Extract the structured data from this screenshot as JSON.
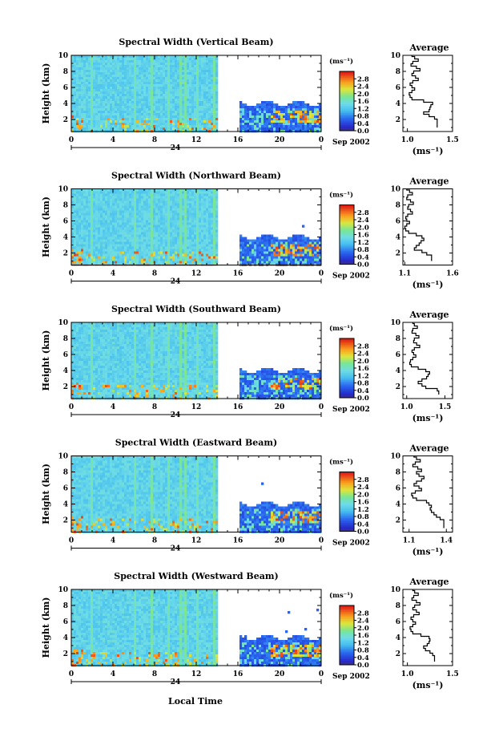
{
  "figure": {
    "xlabel": "Local Time",
    "date_label": "Sep 2002",
    "day_label": "24",
    "ylabel": "Height (km)",
    "colorbar_unit": "(ms⁻¹)",
    "avg_title": "Average",
    "avg_unit": "(ms⁻¹)"
  },
  "colors": {
    "low": "#3a3a7a",
    "mid": "#6dd6f0",
    "high": "#e0201a"
  },
  "chart_data": [
    {
      "type": "heatmap",
      "title": "Spectral Width (Vertical Beam)",
      "x_ticks": [
        "0",
        "4",
        "8",
        "12",
        "16",
        "20",
        "0"
      ],
      "x_range": [
        0,
        24
      ],
      "y_ticks": [
        "2",
        "4",
        "6",
        "8",
        "10"
      ],
      "ylim": [
        0.5,
        10
      ],
      "gap_hours": [
        14,
        16
      ],
      "colorbar": {
        "ticks": [
          "0.0",
          "0.4",
          "0.8",
          "1.2",
          "1.6",
          "2.0",
          "2.4",
          "2.8"
        ],
        "range": [
          0,
          3.2
        ]
      },
      "average": {
        "xlim": [
          0.95,
          1.5
        ],
        "x_ticks": [
          "1.0",
          "1.5"
        ],
        "x": [
          1.05,
          1.08,
          1.12,
          1.06,
          1.04,
          1.1,
          1.14,
          1.07,
          1.05,
          1.09,
          1.12,
          1.06,
          1.03,
          1.05,
          1.08,
          1.05,
          1.02,
          1.03,
          1.05,
          1.18,
          1.28,
          1.26,
          1.25,
          1.24,
          1.18,
          1.24,
          1.3,
          1.33,
          1.33,
          1.33,
          1.33
        ],
        "y": [
          10,
          9.7,
          9.4,
          9.1,
          8.8,
          8.5,
          8.2,
          7.9,
          7.6,
          7.3,
          7.0,
          6.7,
          6.4,
          6.1,
          5.8,
          5.5,
          5.2,
          4.9,
          4.6,
          4.3,
          4.0,
          3.7,
          3.4,
          3.1,
          2.8,
          2.5,
          2.2,
          1.9,
          1.6,
          1.3,
          1.0
        ]
      }
    },
    {
      "type": "heatmap",
      "title": "Spectral Width (Northward Beam)",
      "x_ticks": [
        "0",
        "4",
        "8",
        "12",
        "16",
        "20",
        "0"
      ],
      "x_range": [
        0,
        24
      ],
      "y_ticks": [
        "2",
        "4",
        "6",
        "8",
        "10"
      ],
      "ylim": [
        0.5,
        10
      ],
      "gap_hours": [
        14,
        16
      ],
      "colorbar": {
        "ticks": [
          "0.0",
          "0.4",
          "0.8",
          "1.2",
          "1.6",
          "2.0",
          "2.4",
          "2.8"
        ],
        "range": [
          0,
          3.2
        ]
      },
      "average": {
        "xlim": [
          1.08,
          1.6
        ],
        "x_ticks": [
          "1.1",
          "1.6"
        ],
        "x": [
          1.12,
          1.15,
          1.18,
          1.13,
          1.12,
          1.16,
          1.19,
          1.14,
          1.13,
          1.16,
          1.18,
          1.13,
          1.11,
          1.12,
          1.15,
          1.12,
          1.1,
          1.11,
          1.14,
          1.22,
          1.28,
          1.3,
          1.27,
          1.25,
          1.22,
          1.2,
          1.28,
          1.33,
          1.38,
          1.38,
          1.38
        ],
        "y": [
          10,
          9.7,
          9.4,
          9.1,
          8.8,
          8.5,
          8.2,
          7.9,
          7.6,
          7.3,
          7.0,
          6.7,
          6.4,
          6.1,
          5.8,
          5.5,
          5.2,
          4.9,
          4.6,
          4.3,
          4.0,
          3.7,
          3.4,
          3.1,
          2.8,
          2.5,
          2.2,
          1.9,
          1.6,
          1.3,
          1.0
        ]
      }
    },
    {
      "type": "heatmap",
      "title": "Spectral Width (Southward Beam)",
      "x_ticks": [
        "0",
        "4",
        "8",
        "12",
        "16",
        "20",
        "0"
      ],
      "x_range": [
        0,
        24
      ],
      "y_ticks": [
        "2",
        "4",
        "6",
        "8",
        "10"
      ],
      "ylim": [
        0.5,
        10
      ],
      "gap_hours": [
        14,
        16
      ],
      "colorbar": {
        "ticks": [
          "0.0",
          "0.4",
          "0.8",
          "1.2",
          "1.6",
          "2.0",
          "2.4",
          "2.8"
        ],
        "range": [
          0,
          3.2
        ]
      },
      "average": {
        "xlim": [
          0.95,
          1.6
        ],
        "x_ticks": [
          "1.0",
          "1.5"
        ],
        "x": [
          1.08,
          1.1,
          1.14,
          1.08,
          1.07,
          1.12,
          1.16,
          1.1,
          1.09,
          1.13,
          1.17,
          1.1,
          1.07,
          1.09,
          1.12,
          1.08,
          1.05,
          1.04,
          1.06,
          1.15,
          1.25,
          1.3,
          1.28,
          1.26,
          1.2,
          1.15,
          1.2,
          1.25,
          1.4,
          1.42,
          1.42
        ],
        "y": [
          10,
          9.7,
          9.4,
          9.1,
          8.8,
          8.5,
          8.2,
          7.9,
          7.6,
          7.3,
          7.0,
          6.7,
          6.4,
          6.1,
          5.8,
          5.5,
          5.2,
          4.9,
          4.6,
          4.3,
          4.0,
          3.7,
          3.4,
          3.1,
          2.8,
          2.5,
          2.2,
          1.9,
          1.6,
          1.3,
          1.0
        ]
      }
    },
    {
      "type": "heatmap",
      "title": "Spectral Width (Eastward Beam)",
      "x_ticks": [
        "0",
        "4",
        "8",
        "12",
        "16",
        "20",
        "0"
      ],
      "x_range": [
        0,
        24
      ],
      "y_ticks": [
        "2",
        "4",
        "6",
        "8",
        "10"
      ],
      "ylim": [
        0.5,
        10
      ],
      "gap_hours": [
        14,
        16
      ],
      "colorbar": {
        "ticks": [
          "0.0",
          "0.4",
          "0.8",
          "1.2",
          "1.6",
          "2.0",
          "2.4",
          "2.8"
        ],
        "range": [
          0,
          3.2
        ]
      },
      "average": {
        "xlim": [
          1.05,
          1.45
        ],
        "x_ticks": [
          "1.1",
          "1.4"
        ],
        "x": [
          1.14,
          1.16,
          1.19,
          1.15,
          1.13,
          1.17,
          1.2,
          1.16,
          1.18,
          1.22,
          1.2,
          1.16,
          1.14,
          1.18,
          1.2,
          1.15,
          1.12,
          1.13,
          1.16,
          1.24,
          1.26,
          1.28,
          1.27,
          1.28,
          1.3,
          1.32,
          1.35,
          1.38,
          1.38,
          1.38,
          1.38
        ],
        "y": [
          10,
          9.7,
          9.4,
          9.1,
          8.8,
          8.5,
          8.2,
          7.9,
          7.6,
          7.3,
          7.0,
          6.7,
          6.4,
          6.1,
          5.8,
          5.5,
          5.2,
          4.9,
          4.6,
          4.3,
          4.0,
          3.7,
          3.4,
          3.1,
          2.8,
          2.5,
          2.2,
          1.9,
          1.6,
          1.3,
          1.0
        ]
      }
    },
    {
      "type": "heatmap",
      "title": "Spectral Width (Westward Beam)",
      "x_ticks": [
        "0",
        "4",
        "8",
        "12",
        "16",
        "20",
        "0"
      ],
      "x_range": [
        0,
        24
      ],
      "y_ticks": [
        "2",
        "4",
        "6",
        "8",
        "10"
      ],
      "ylim": [
        0.5,
        10
      ],
      "gap_hours": [
        14,
        16
      ],
      "colorbar": {
        "ticks": [
          "0.0",
          "0.4",
          "0.8",
          "1.2",
          "1.6",
          "2.0",
          "2.4",
          "2.8"
        ],
        "range": [
          0,
          3.2
        ]
      },
      "average": {
        "xlim": [
          0.95,
          1.5
        ],
        "x_ticks": [
          "1.0",
          "1.5"
        ],
        "x": [
          1.06,
          1.08,
          1.12,
          1.07,
          1.05,
          1.1,
          1.14,
          1.08,
          1.06,
          1.1,
          1.13,
          1.07,
          1.04,
          1.06,
          1.09,
          1.06,
          1.03,
          1.04,
          1.06,
          1.15,
          1.24,
          1.25,
          1.24,
          1.22,
          1.18,
          1.2,
          1.25,
          1.28,
          1.3,
          1.3,
          1.3
        ],
        "y": [
          10,
          9.7,
          9.4,
          9.1,
          8.8,
          8.5,
          8.2,
          7.9,
          7.6,
          7.3,
          7.0,
          6.7,
          6.4,
          6.1,
          5.8,
          5.5,
          5.2,
          4.9,
          4.6,
          4.3,
          4.0,
          3.7,
          3.4,
          3.1,
          2.8,
          2.5,
          2.2,
          1.9,
          1.6,
          1.3,
          1.0
        ]
      }
    }
  ]
}
